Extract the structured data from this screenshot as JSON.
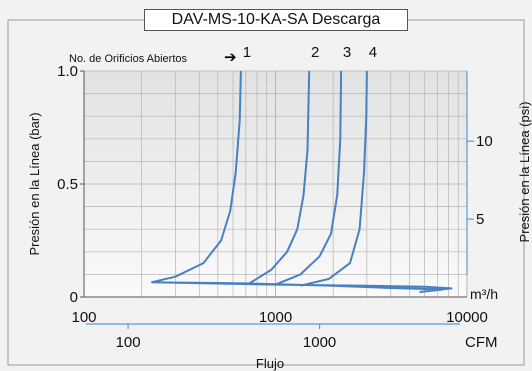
{
  "chart_data": {
    "type": "line",
    "title": "DAV-MS-10-KA-SA Descarga",
    "xlabel": "Flujo",
    "ylabel_left": "Presión en la Línea (bar)",
    "ylabel_right": "Presión en la Línea (psi)",
    "x_scale": "log",
    "xlim_m3h": [
      100,
      10000
    ],
    "ylim_bar": [
      0,
      1.0
    ],
    "x_ticks_m3h": [
      "100",
      "1000",
      "10000"
    ],
    "x_unit_m3h": "m³/h",
    "x_ticks_cfm": [
      "100",
      "1000"
    ],
    "x_unit_cfm": "CFM",
    "y_ticks_bar": [
      "0",
      "0.5",
      "1.0"
    ],
    "y_ticks_psi": [
      "5",
      "10"
    ],
    "grid": true,
    "annotation": {
      "text": "No. de Orificios Abiertos",
      "arrow": "➔"
    },
    "series": [
      {
        "name": "1",
        "points": [
          [
            225,
            0.065
          ],
          [
            300,
            0.09
          ],
          [
            420,
            0.15
          ],
          [
            520,
            0.25
          ],
          [
            580,
            0.38
          ],
          [
            620,
            0.55
          ],
          [
            650,
            0.78
          ],
          [
            660,
            1.0
          ]
        ]
      },
      {
        "name": "2",
        "points": [
          [
            730,
            0.06
          ],
          [
            950,
            0.12
          ],
          [
            1150,
            0.2
          ],
          [
            1300,
            0.3
          ],
          [
            1400,
            0.45
          ],
          [
            1470,
            0.65
          ],
          [
            1500,
            1.0
          ]
        ]
      },
      {
        "name": "3",
        "points": [
          [
            1000,
            0.055
          ],
          [
            1350,
            0.1
          ],
          [
            1700,
            0.18
          ],
          [
            1950,
            0.28
          ],
          [
            2100,
            0.45
          ],
          [
            2180,
            0.7
          ],
          [
            2200,
            1.0
          ]
        ]
      },
      {
        "name": "4",
        "points": [
          [
            1350,
            0.05
          ],
          [
            1900,
            0.08
          ],
          [
            2450,
            0.15
          ],
          [
            2750,
            0.3
          ],
          [
            2900,
            0.55
          ],
          [
            2980,
            0.8
          ],
          [
            3000,
            1.0
          ]
        ]
      }
    ],
    "baseline_loop": [
      [
        225,
        0.065
      ],
      [
        1000,
        0.055
      ],
      [
        3000,
        0.05
      ],
      [
        6000,
        0.045
      ],
      [
        8300,
        0.038
      ],
      [
        6500,
        0.03
      ],
      [
        5700,
        0.022
      ],
      [
        7500,
        0.033
      ],
      [
        4000,
        0.04
      ],
      [
        2000,
        0.05
      ],
      [
        700,
        0.06
      ],
      [
        225,
        0.065
      ]
    ],
    "colors": {
      "line": "#4a7fc1",
      "accent_axis": "#5b9bd5",
      "grid": "#b5b5b5",
      "plot_bg": "#e8e8e8"
    }
  }
}
